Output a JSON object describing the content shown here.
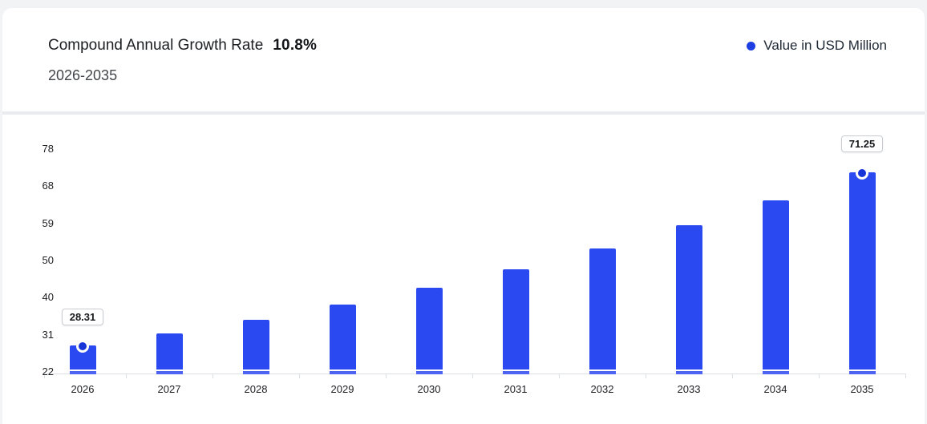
{
  "header": {
    "title": "Compound Annual Growth Rate",
    "cagr": "10.8%",
    "subtitle": "2026-2035"
  },
  "legend": {
    "label": "Value in USD Million"
  },
  "colors": {
    "bar": "#2b49f1",
    "bar_base": "#4f63f3",
    "marker": "#1634d8",
    "legend_dot": "#1d3ee0",
    "axis": "#dcdfe3",
    "tick_label": "#202124",
    "value_label_text": "#17191c"
  },
  "chart_data": {
    "type": "bar",
    "title": "Compound Annual Growth Rate 10.8%",
    "subtitle": "2026-2035",
    "series_name": "Value in USD Million",
    "categories": [
      "2026",
      "2027",
      "2028",
      "2029",
      "2030",
      "2031",
      "2032",
      "2033",
      "2034",
      "2035"
    ],
    "values": [
      28.31,
      31.37,
      34.76,
      38.51,
      42.67,
      47.28,
      52.39,
      58.04,
      64.31,
      71.25
    ],
    "annotated_indices": [
      0,
      9
    ],
    "annotated_labels": [
      "28.31",
      "71.25"
    ],
    "yticks": [
      22,
      31,
      40,
      50,
      59,
      68,
      78
    ],
    "ylim": [
      22,
      78
    ],
    "xlabel": "",
    "ylabel": "",
    "grid": false,
    "legend_position": "top-right"
  }
}
